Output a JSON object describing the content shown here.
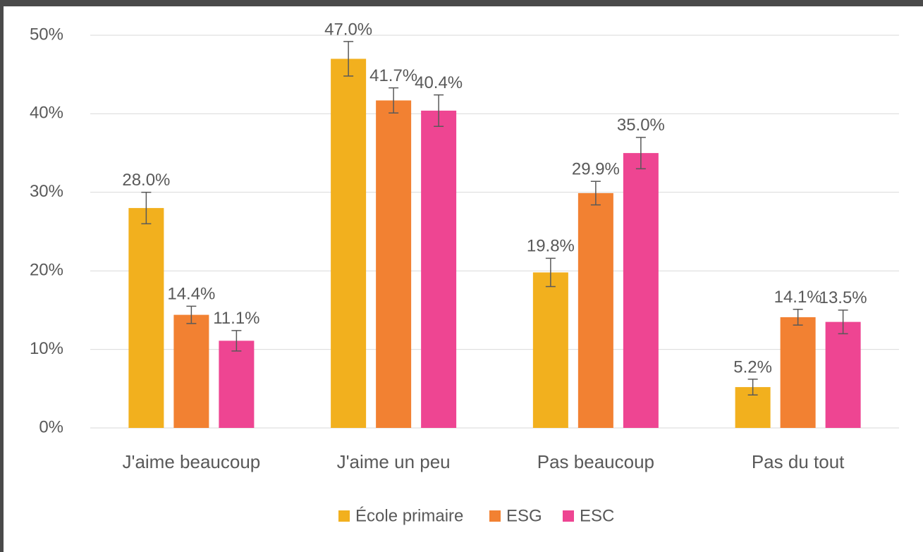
{
  "chart_data": {
    "type": "bar",
    "categories": [
      "J'aime beaucoup",
      "J'aime un peu",
      "Pas beaucoup",
      "Pas du tout"
    ],
    "series": [
      {
        "name": "École primaire",
        "color": "#f2b01e",
        "values": [
          28.0,
          47.0,
          19.8,
          5.2
        ],
        "value_labels": [
          "28.0%",
          "47.0%",
          "19.8%",
          "5.2%"
        ],
        "errors": [
          2.0,
          2.2,
          1.8,
          1.0
        ]
      },
      {
        "name": "ESG",
        "color": "#f28132",
        "values": [
          14.4,
          41.7,
          29.9,
          14.1
        ],
        "value_labels": [
          "14.4%",
          "41.7%",
          "29.9%",
          "14.1%"
        ],
        "errors": [
          1.1,
          1.6,
          1.5,
          1.0
        ]
      },
      {
        "name": "ESC",
        "color": "#ee4592",
        "values": [
          11.1,
          40.4,
          35.0,
          13.5
        ],
        "value_labels": [
          "11.1%",
          "40.4%",
          "35.0%",
          "13.5%"
        ],
        "errors": [
          1.3,
          2.0,
          2.0,
          1.5
        ]
      }
    ],
    "ylim": [
      0,
      50
    ],
    "yticks": [
      {
        "value": 0,
        "label": "0%"
      },
      {
        "value": 10,
        "label": "10%"
      },
      {
        "value": 20,
        "label": "20%"
      },
      {
        "value": 30,
        "label": "30%"
      },
      {
        "value": 40,
        "label": "40%"
      },
      {
        "value": 50,
        "label": "50%"
      }
    ],
    "grid": true,
    "legend": "bottom"
  }
}
